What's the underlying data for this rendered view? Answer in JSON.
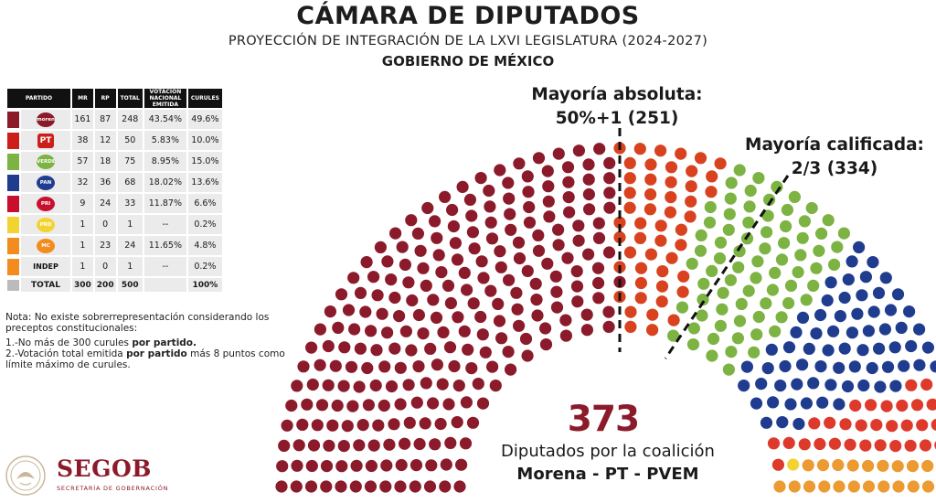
{
  "header": {
    "title": "CÁMARA DE DIPUTADOS",
    "subtitle": "PROYECCIÓN DE INTEGRACIÓN DE LA LXVI LEGISLATURA (2024-2027)",
    "government": "GOBIERNO DE MÉXICO"
  },
  "table": {
    "headers": [
      "PARTIDO",
      "MR",
      "RP",
      "TOTAL",
      "VOTACIÓN NACIONAL EMITIDA",
      "CURULES"
    ],
    "total_label": "TOTAL",
    "total_row": [
      "300",
      "200",
      "500",
      "",
      "100%"
    ]
  },
  "notes": {
    "title": "Nota: No existe sobrerrepresentación considerando los preceptos constitucionales:",
    "item1_a": "1.-No más de 300 curules ",
    "item1_b": "por partido.",
    "item2_a": "2.-Votación total emitida ",
    "item2_b": "por partido",
    "item2_c": " más 8 puntos como límite máximo de curules."
  },
  "logo": {
    "name": "SEGOB",
    "subtitle": "SECRETARÍA DE GOBERNACIÓN",
    "color": "#8b1a2b"
  },
  "annotations": {
    "majority_absolute_line1": "Mayoría absoluta:",
    "majority_absolute_line2": "50%+1 (251)",
    "majority_qualified_line1": "Mayoría calificada:",
    "majority_qualified_line2": "2/3 (334)"
  },
  "coalition": {
    "seats": "373",
    "line1": "Diputados por la coalición",
    "line2": "Morena - PT - PVEM"
  },
  "chart_data": {
    "type": "parliament",
    "title": "CÁMARA DE DIPUTADOS",
    "total_seats": 500,
    "thresholds": [
      {
        "label": "Mayoría absoluta: 50%+1 (251)",
        "seats": 251
      },
      {
        "label": "Mayoría calificada: 2/3 (334)",
        "seats": 334
      }
    ],
    "series": [
      {
        "name": "morena",
        "logo": "morena",
        "mr": "161",
        "rp": "87",
        "total": 248,
        "total_label": "248",
        "vote": "43.54%",
        "curules": "49.6%",
        "color": "#8b1a2b",
        "dot_color": "#8b1a2b"
      },
      {
        "name": "PT",
        "logo": "PT",
        "mr": "38",
        "rp": "12",
        "total": 50,
        "total_label": "50",
        "vote": "5.83%",
        "curules": "10.0%",
        "color": "#cc1f1a",
        "dot_color": "#d8421f"
      },
      {
        "name": "VERDE",
        "logo": "VERDE",
        "mr": "57",
        "rp": "18",
        "total": 75,
        "total_label": "75",
        "vote": "8.95%",
        "curules": "15.0%",
        "color": "#7cb342",
        "dot_color": "#7cb342"
      },
      {
        "name": "PAN",
        "logo": "PAN",
        "mr": "32",
        "rp": "36",
        "total": 68,
        "total_label": "68",
        "vote": "18.02%",
        "curules": "13.6%",
        "color": "#1f3c8f",
        "dot_color": "#1f3c8f"
      },
      {
        "name": "PRI",
        "logo": "PRI",
        "mr": "9",
        "rp": "24",
        "total": 33,
        "total_label": "33",
        "vote": "11.87%",
        "curules": "6.6%",
        "color": "#c8102e",
        "dot_color": "#de3a2c"
      },
      {
        "name": "PRD",
        "logo": "PRD",
        "mr": "1",
        "rp": "0",
        "total": 1,
        "total_label": "1",
        "vote": "--",
        "curules": "0.2%",
        "color": "#f2d331",
        "dot_color": "#f2d331"
      },
      {
        "name": "MC",
        "logo": "MC",
        "mr": "1",
        "rp": "23",
        "total": 24,
        "total_label": "24",
        "vote": "11.65%",
        "curules": "4.8%",
        "color": "#f28c1e",
        "dot_color": "#ec9a32"
      },
      {
        "name": "INDEP",
        "logo": "INDEP",
        "mr": "1",
        "rp": "0",
        "total": 1,
        "total_label": "1",
        "vote": "--",
        "curules": "0.2%",
        "color": "#f28c1e",
        "dot_color": "#4a4a4a"
      }
    ]
  }
}
